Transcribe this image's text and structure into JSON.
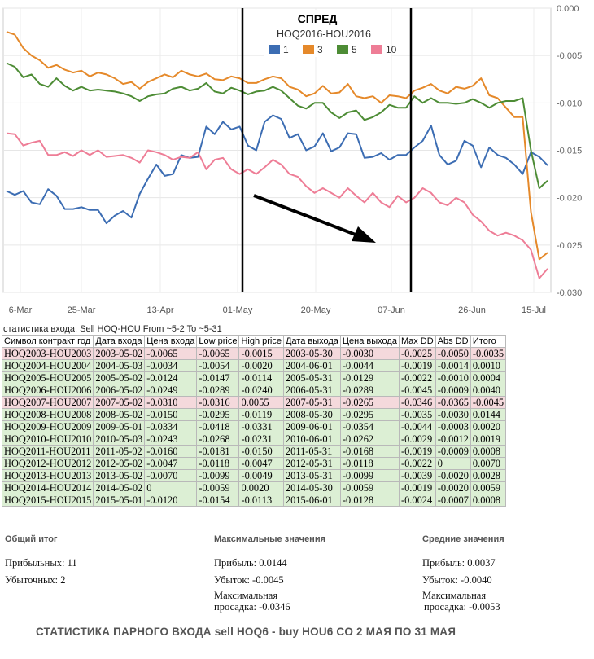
{
  "chart_data": {
    "type": "line",
    "title": "СПРЕД",
    "subtitle": "HOQ2016-HOU2016",
    "x_ticks": [
      "6-Mar",
      "25-Mar",
      "13-Apr",
      "01-May",
      "20-May",
      "07-Jun",
      "26-Jun",
      "15-Jul"
    ],
    "y_ticks": [
      "0.000",
      "-0.005",
      "-0.010",
      "-0.015",
      "-0.020",
      "-0.025",
      "-0.030"
    ],
    "ylim": [
      -0.03,
      0.0
    ],
    "grid": true,
    "legend_position": "top-center",
    "colors": {
      "1": "#3c6db3",
      "3": "#e5892a",
      "5": "#4d8c35",
      "10": "#ee7d96"
    },
    "series": [
      {
        "name": "1",
        "values": [
          -0.0193,
          -0.0197,
          -0.0193,
          -0.0205,
          -0.0207,
          -0.0191,
          -0.0198,
          -0.0212,
          -0.0212,
          -0.021,
          -0.0213,
          -0.0213,
          -0.0227,
          -0.0219,
          -0.0214,
          -0.0221,
          -0.0196,
          -0.018,
          -0.0165,
          -0.0177,
          -0.0175,
          -0.0155,
          -0.0158,
          -0.0157,
          -0.0125,
          -0.0133,
          -0.012,
          -0.0128,
          -0.0125,
          -0.0145,
          -0.015,
          -0.012,
          -0.0113,
          -0.0117,
          -0.0137,
          -0.0133,
          -0.015,
          -0.0146,
          -0.0132,
          -0.0151,
          -0.0147,
          -0.0132,
          -0.0133,
          -0.0158,
          -0.0157,
          -0.0153,
          -0.016,
          -0.0155,
          -0.0155,
          -0.0147,
          -0.014,
          -0.0124,
          -0.0155,
          -0.0165,
          -0.0161,
          -0.014,
          -0.0145,
          -0.0168,
          -0.0147,
          -0.0155,
          -0.0158,
          -0.0165,
          -0.0175,
          -0.0152,
          -0.0157,
          -0.0166
        ]
      },
      {
        "name": "3",
        "values": [
          -0.0025,
          -0.0028,
          -0.0042,
          -0.005,
          -0.0055,
          -0.0063,
          -0.006,
          -0.0065,
          -0.0068,
          -0.0066,
          -0.0072,
          -0.0068,
          -0.007,
          -0.0074,
          -0.008,
          -0.0078,
          -0.0085,
          -0.0078,
          -0.0074,
          -0.007,
          -0.0073,
          -0.0066,
          -0.007,
          -0.0072,
          -0.0069,
          -0.0075,
          -0.0076,
          -0.0072,
          -0.0074,
          -0.0079,
          -0.0079,
          -0.0075,
          -0.0072,
          -0.0074,
          -0.0083,
          -0.0086,
          -0.0093,
          -0.009,
          -0.0082,
          -0.009,
          -0.0089,
          -0.008,
          -0.0093,
          -0.0095,
          -0.0093,
          -0.01,
          -0.0092,
          -0.0093,
          -0.0095,
          -0.0087,
          -0.0084,
          -0.008,
          -0.0087,
          -0.009,
          -0.0083,
          -0.0085,
          -0.0082,
          -0.0074,
          -0.0092,
          -0.0095,
          -0.0105,
          -0.0115,
          -0.0115,
          -0.0215,
          -0.0265,
          -0.0258
        ]
      },
      {
        "name": "5",
        "values": [
          -0.0058,
          -0.0062,
          -0.0073,
          -0.007,
          -0.008,
          -0.0083,
          -0.0074,
          -0.0082,
          -0.0087,
          -0.0083,
          -0.0087,
          -0.0086,
          -0.0087,
          -0.0088,
          -0.009,
          -0.0093,
          -0.0098,
          -0.0093,
          -0.0091,
          -0.009,
          -0.0085,
          -0.0083,
          -0.0087,
          -0.0085,
          -0.0079,
          -0.0088,
          -0.009,
          -0.0084,
          -0.0087,
          -0.0091,
          -0.0088,
          -0.0087,
          -0.0083,
          -0.0087,
          -0.0095,
          -0.0103,
          -0.0106,
          -0.01,
          -0.01,
          -0.011,
          -0.0116,
          -0.011,
          -0.0108,
          -0.0118,
          -0.0115,
          -0.011,
          -0.0102,
          -0.0105,
          -0.0105,
          -0.0093,
          -0.01,
          -0.0095,
          -0.01,
          -0.01,
          -0.0101,
          -0.01,
          -0.0096,
          -0.01,
          -0.0105,
          -0.01,
          -0.0098,
          -0.0098,
          -0.0095,
          -0.015,
          -0.019,
          -0.0182
        ]
      },
      {
        "name": "10",
        "values": [
          -0.0132,
          -0.0133,
          -0.0145,
          -0.0142,
          -0.014,
          -0.0155,
          -0.0155,
          -0.0152,
          -0.0156,
          -0.015,
          -0.0155,
          -0.015,
          -0.0157,
          -0.0156,
          -0.0155,
          -0.0158,
          -0.0163,
          -0.015,
          -0.0152,
          -0.0155,
          -0.016,
          -0.0157,
          -0.0158,
          -0.0152,
          -0.017,
          -0.016,
          -0.0158,
          -0.017,
          -0.0175,
          -0.017,
          -0.0175,
          -0.0168,
          -0.016,
          -0.0165,
          -0.0175,
          -0.0178,
          -0.0188,
          -0.0195,
          -0.019,
          -0.0195,
          -0.02,
          -0.019,
          -0.0198,
          -0.0205,
          -0.0195,
          -0.0205,
          -0.021,
          -0.0198,
          -0.0205,
          -0.02,
          -0.019,
          -0.0195,
          -0.0205,
          -0.0208,
          -0.02,
          -0.0205,
          -0.0218,
          -0.0225,
          -0.0235,
          -0.024,
          -0.0237,
          -0.024,
          -0.0245,
          -0.0255,
          -0.0285,
          -0.0275
        ]
      }
    ]
  },
  "stats": {
    "title": "статистика входа: Sell HOQ-HOU From ~5-2 To ~5-31",
    "headers": [
      "Символ контракт год",
      "Дата входа",
      "Цена входа",
      "Low price",
      "High price",
      "Дата выхода",
      "Цена выхода",
      "Max DD",
      "Abs DD",
      "Итого"
    ],
    "rows": [
      {
        "status": "neg",
        "cells": [
          "HOQ2003-HOU2003",
          "2003-05-02",
          "-0.0065",
          "-0.0065",
          "-0.0015",
          "2003-05-30",
          "-0.0030",
          "-0.0025",
          "-0.0050",
          "-0.0035"
        ]
      },
      {
        "status": "pos",
        "cells": [
          "HOQ2004-HOU2004",
          "2004-05-03",
          "-0.0034",
          "-0.0054",
          "-0.0020",
          "2004-06-01",
          "-0.0044",
          "-0.0019",
          "-0.0014",
          "0.0010"
        ]
      },
      {
        "status": "pos",
        "cells": [
          "HOQ2005-HOU2005",
          "2005-05-02",
          "-0.0124",
          "-0.0147",
          "-0.0114",
          "2005-05-31",
          "-0.0129",
          "-0.0022",
          "-0.0010",
          "0.0004"
        ]
      },
      {
        "status": "pos",
        "cells": [
          "HOQ2006-HOU2006",
          "2006-05-02",
          "-0.0249",
          "-0.0289",
          "-0.0240",
          "2006-05-31",
          "-0.0289",
          "-0.0045",
          "-0.0009",
          "0.0040"
        ]
      },
      {
        "status": "neg",
        "cells": [
          "HOQ2007-HOU2007",
          "2007-05-02",
          "-0.0310",
          "-0.0316",
          "0.0055",
          "2007-05-31",
          "-0.0265",
          "-0.0346",
          "-0.0365",
          "-0.0045"
        ]
      },
      {
        "status": "pos",
        "cells": [
          "HOQ2008-HOU2008",
          "2008-05-02",
          "-0.0150",
          "-0.0295",
          "-0.0119",
          "2008-05-30",
          "-0.0295",
          "-0.0035",
          "-0.0030",
          "0.0144"
        ]
      },
      {
        "status": "pos",
        "cells": [
          "HOQ2009-HOU2009",
          "2009-05-01",
          "-0.0334",
          "-0.0418",
          "-0.0331",
          "2009-06-01",
          "-0.0354",
          "-0.0044",
          "-0.0003",
          "0.0020"
        ]
      },
      {
        "status": "pos",
        "cells": [
          "HOQ2010-HOU2010",
          "2010-05-03",
          "-0.0243",
          "-0.0268",
          "-0.0231",
          "2010-06-01",
          "-0.0262",
          "-0.0029",
          "-0.0012",
          "0.0019"
        ]
      },
      {
        "status": "pos",
        "cells": [
          "HOQ2011-HOU2011",
          "2011-05-02",
          "-0.0160",
          "-0.0181",
          "-0.0150",
          "2011-05-31",
          "-0.0168",
          "-0.0019",
          "-0.0009",
          "0.0008"
        ]
      },
      {
        "status": "pos",
        "cells": [
          "HOQ2012-HOU2012",
          "2012-05-02",
          "-0.0047",
          "-0.0118",
          "-0.0047",
          "2012-05-31",
          "-0.0118",
          "-0.0022",
          "0",
          "0.0070"
        ]
      },
      {
        "status": "pos",
        "cells": [
          "HOQ2013-HOU2013",
          "2013-05-02",
          "-0.0070",
          "-0.0099",
          "-0.0049",
          "2013-05-31",
          "-0.0099",
          "-0.0039",
          "-0.0020",
          "0.0028"
        ]
      },
      {
        "status": "pos",
        "cells": [
          "HOQ2014-HOU2014",
          "2014-05-02",
          "0",
          "-0.0059",
          "0.0020",
          "2014-05-30",
          "-0.0059",
          "-0.0019",
          "-0.0020",
          "0.0059"
        ]
      },
      {
        "status": "pos",
        "cells": [
          "HOQ2015-HOU2015",
          "2015-05-01",
          "-0.0120",
          "-0.0154",
          "-0.0113",
          "2015-06-01",
          "-0.0128",
          "-0.0024",
          "-0.0007",
          "0.0008"
        ]
      }
    ]
  },
  "summary": {
    "total": {
      "heading": "Общий итог",
      "profitable": "Прибыльных: 11",
      "losing": "Убыточных: 2"
    },
    "max": {
      "heading": "Максимальные значения",
      "profit": "Прибыль: 0.0144",
      "loss": "Убыток: -0.0045",
      "dd_label": "Максимальная",
      "dd_value": "просадка: -0.0346"
    },
    "avg": {
      "heading": "Средние значения",
      "profit": "Прибыль: 0.0037",
      "loss": "Убыток: -0.0040",
      "dd_label": "Максимальная",
      "dd_value": "просадка: -0.0053"
    }
  },
  "footer": "СТАТИСТИКА ПАРНОГО ВХОДА  sell HOQ6  -  buy HOU6  CO 2 МАЯ  ПО  31  МАЯ"
}
